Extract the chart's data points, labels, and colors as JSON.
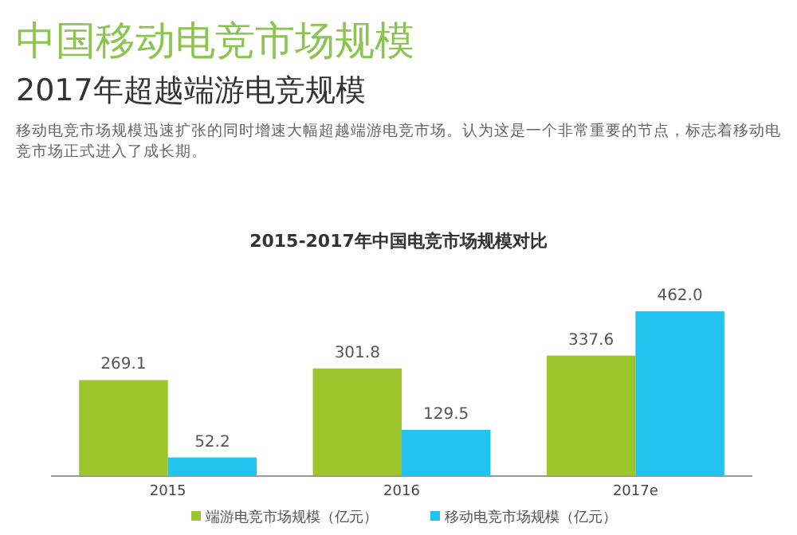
{
  "chart_data": {
    "type": "bar",
    "title": "2015-2017年中国电竞市场规模对比",
    "subtitle": "中国移动电竞市场规模",
    "annotations": [
      "2017年超越端游电竞规模",
      "移动电竞市场规模迅速扩张的同时增速大幅超越端游电竞市场。认为这是一个非常重要的节点，标志着移动电竞市场正式进入了成长期。"
    ],
    "categories": [
      "2015",
      "2016",
      "2017e"
    ],
    "series": [
      {
        "name": "端游电竞市场规模（亿元）",
        "color": "#9dc62d",
        "values": [
          269.1,
          301.8,
          337.6
        ],
        "value_labels": [
          "269.1",
          "301.8",
          "337.6"
        ]
      },
      {
        "name": "移动电竞市场规模（亿元）",
        "color": "#22c3ee",
        "values": [
          52.2,
          129.5,
          462.0
        ],
        "value_labels": [
          "52.2",
          "129.5",
          "462.0"
        ]
      }
    ],
    "legend": "bottom",
    "grid": false
  }
}
